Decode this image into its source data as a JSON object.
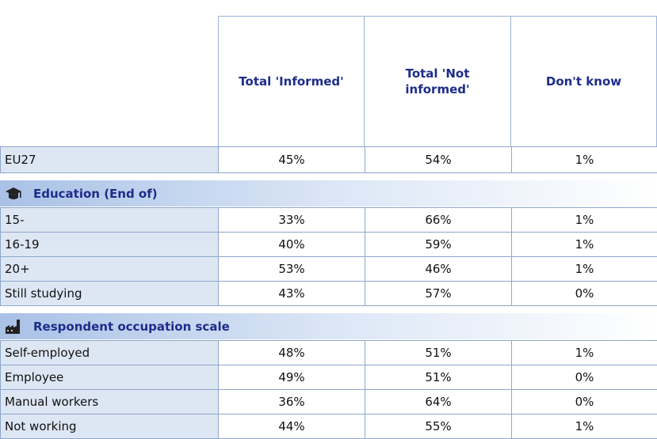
{
  "table": {
    "columns": [
      "Total 'Informed'",
      "Total 'Not informed'",
      "Don't know"
    ],
    "groups": [
      {
        "rows": [
          {
            "label": "EU27",
            "cells": [
              "45%",
              "54%",
              "1%"
            ]
          }
        ]
      },
      {
        "title": "Education (End of)",
        "icon": "cap",
        "rows": [
          {
            "label": "15-",
            "cells": [
              "33%",
              "66%",
              "1%"
            ]
          },
          {
            "label": "16-19",
            "cells": [
              "40%",
              "59%",
              "1%"
            ]
          },
          {
            "label": "20+",
            "cells": [
              "53%",
              "46%",
              "1%"
            ]
          },
          {
            "label": "Still studying",
            "cells": [
              "43%",
              "57%",
              "0%"
            ]
          }
        ]
      },
      {
        "title": "Respondent occupation scale",
        "icon": "factory",
        "rows": [
          {
            "label": "Self-employed",
            "cells": [
              "48%",
              "51%",
              "1%"
            ]
          },
          {
            "label": "Employee",
            "cells": [
              "49%",
              "51%",
              "0%"
            ]
          },
          {
            "label": "Manual workers",
            "cells": [
              "36%",
              "64%",
              "0%"
            ]
          },
          {
            "label": "Not working",
            "cells": [
              "44%",
              "55%",
              "1%"
            ]
          }
        ]
      }
    ]
  }
}
